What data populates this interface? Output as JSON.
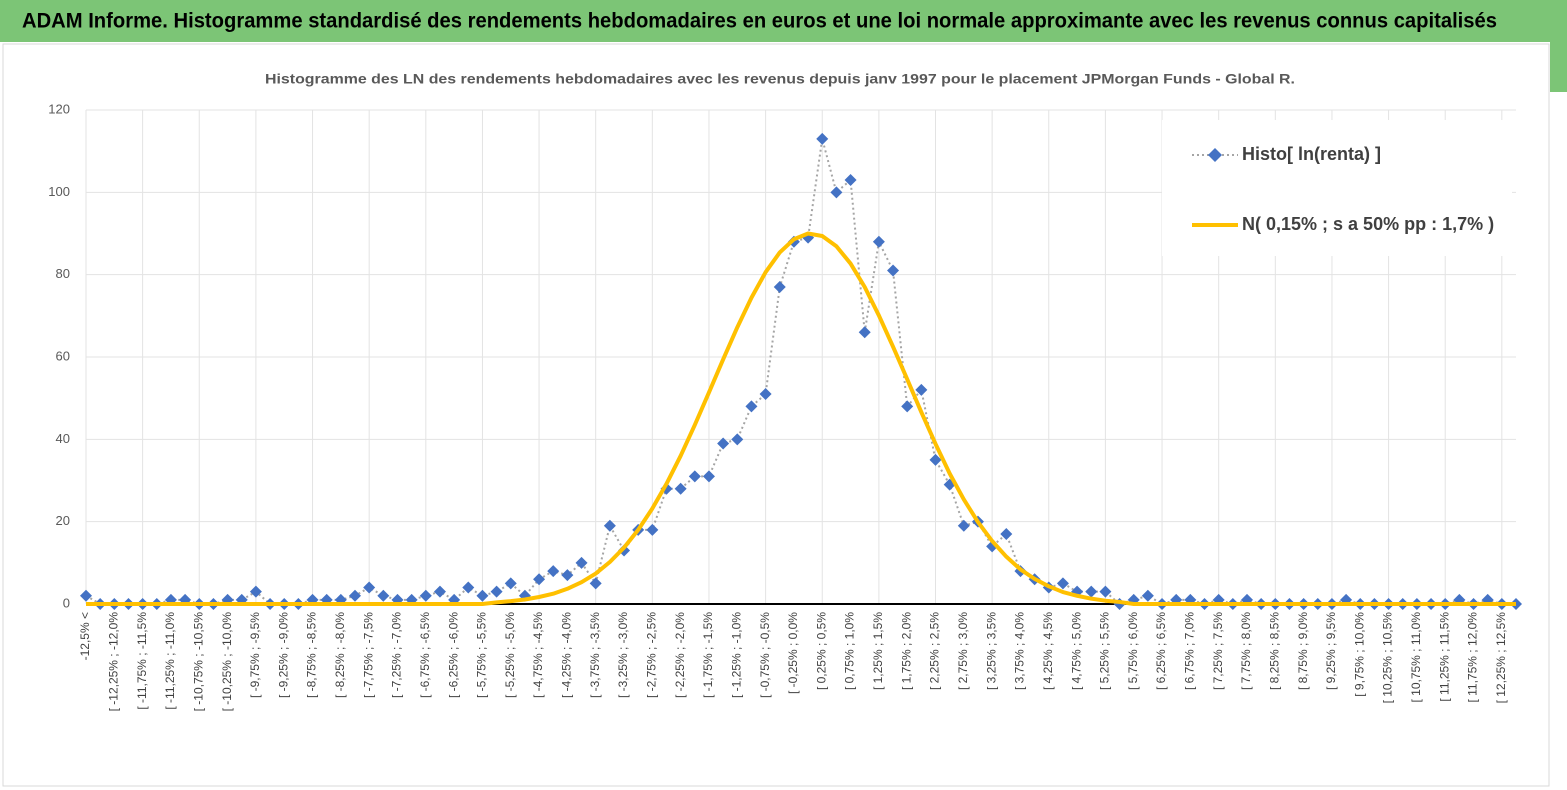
{
  "header": {
    "title": "ADAM Informe. Histogramme standardisé des rendements hebdomadaires en euros et une loi normale approximante avec les revenus connus capitalisés"
  },
  "chart_data": {
    "type": "line",
    "title": "Histogramme  des LN des rendements hebdomadaires avec les revenus depuis janv 1997 pour le placement JPMorgan Funds - Global R.",
    "categories": [
      "-12,5% <",
      null,
      "[ -12,25% ; -12,0%",
      null,
      "[ -11,75% ; -11,5%",
      null,
      "[ -11,25% ; -11,0%",
      null,
      "[ -10,75% ; -10,5%",
      null,
      "[ -10,25% ; -10,0%",
      null,
      "[ -9,75% ; -9,5%",
      null,
      "[ -9,25% ; -9,0%",
      null,
      "[ -8,75% ; -8,5%",
      null,
      "[ -8,25% ; -8,0%",
      null,
      "[ -7,75% ; -7,5%",
      null,
      "[ -7,25% ; -7,0%",
      null,
      "[ -6,75% ; -6,5%",
      null,
      "[ -6,25% ; -6,0%",
      null,
      "[ -5,75% ; -5,5%",
      null,
      "[ -5,25% ; -5,0%",
      null,
      "[ -4,75% ; -4,5%",
      null,
      "[ -4,25% ; -4,0%",
      null,
      "[ -3,75% ; -3,5%",
      null,
      "[ -3,25% ; -3,0%",
      null,
      "[ -2,75% ; -2,5%",
      null,
      "[ -2,25% ; -2,0%",
      null,
      "[ -1,75% ; -1,5%",
      null,
      "[ -1,25% ; -1,0%",
      null,
      "[ -0,75% ; -0,5%",
      null,
      "[ -0,25% ; 0,0%",
      null,
      "[ 0,25% ; 0,5%",
      null,
      "[ 0,75% ; 1,0%",
      null,
      "[ 1,25% ; 1,5%",
      null,
      "[ 1,75% ; 2,0%",
      null,
      "[ 2,25% ; 2,5%",
      null,
      "[ 2,75% ; 3,0%",
      null,
      "[ 3,25% ; 3,5%",
      null,
      "[ 3,75% ; 4,0%",
      null,
      "[ 4,25% ; 4,5%",
      null,
      "[ 4,75% ; 5,0%",
      null,
      "[ 5,25% ; 5,5%",
      null,
      "[ 5,75% ; 6,0%",
      null,
      "[ 6,25% ; 6,5%",
      null,
      "[ 6,75% ; 7,0%",
      null,
      "[ 7,25% ; 7,5%",
      null,
      "[ 7,75% ; 8,0%",
      null,
      "[ 8,25% ; 8,5%",
      null,
      "[ 8,75% ; 9,0%",
      null,
      "[ 9,25% ; 9,5%",
      null,
      "[ 9,75% ; 10,0%",
      null,
      "[ 10,25% ; 10,5%",
      null,
      "[ 10,75% ; 11,0%",
      null,
      "[ 11,25% ; 11,5%",
      null,
      "[ 11,75% ; 12,0%",
      null,
      "[ 12,25% ; 12,5%",
      null
    ],
    "series": [
      {
        "name": "Histo[ ln(renta) ]",
        "color": "#4472c4",
        "line_color": "#a5a5a5",
        "line_style": "dotted",
        "marker": "diamond",
        "values": [
          2,
          0,
          0,
          0,
          0,
          0,
          1,
          1,
          0,
          0,
          1,
          1,
          3,
          0,
          0,
          0,
          1,
          1,
          1,
          2,
          4,
          2,
          1,
          1,
          2,
          3,
          1,
          4,
          2,
          3,
          5,
          2,
          6,
          8,
          7,
          10,
          5,
          19,
          13,
          18,
          18,
          28,
          28,
          31,
          31,
          39,
          40,
          48,
          51,
          77,
          88,
          89,
          113,
          100,
          103,
          66,
          88,
          81,
          48,
          52,
          35,
          29,
          19,
          20,
          14,
          17,
          8,
          6,
          4,
          5,
          3,
          3,
          3,
          0,
          1,
          2,
          0,
          1,
          1,
          0,
          1,
          0,
          1,
          0,
          0,
          0,
          0,
          0,
          0,
          1,
          0,
          0,
          0,
          0,
          0,
          0,
          0,
          1,
          0,
          1,
          0,
          0
        ]
      },
      {
        "name": "N( 0,15% ; s a 50% pp : 1,7% )",
        "color": "#ffc000",
        "line_style": "solid",
        "marker": "none",
        "values": [
          0,
          0,
          0,
          0,
          0,
          0,
          0,
          0,
          0,
          0,
          0,
          0,
          0,
          0,
          0,
          0,
          0,
          0,
          0,
          0,
          0,
          0,
          0,
          0,
          0,
          0,
          0,
          0,
          0,
          0.4,
          0.7,
          1.1,
          1.7,
          2.5,
          3.7,
          5.3,
          7.4,
          10.2,
          13.7,
          18.0,
          23.2,
          29.2,
          36.0,
          43.5,
          51.4,
          59.4,
          67.2,
          74.4,
          80.6,
          85.4,
          88.6,
          90.0,
          89.4,
          86.9,
          82.7,
          77.0,
          70.1,
          62.5,
          54.6,
          46.6,
          38.9,
          31.7,
          25.4,
          19.9,
          15.3,
          11.5,
          8.4,
          6.1,
          4.3,
          2.9,
          2.0,
          1.3,
          0.8,
          0.5,
          0,
          0,
          0,
          0,
          0,
          0,
          0,
          0,
          0,
          0,
          0,
          0,
          0,
          0,
          0,
          0,
          0,
          0,
          0,
          0,
          0,
          0,
          0,
          0,
          0,
          0,
          0,
          0
        ]
      }
    ],
    "ylim": [
      0,
      120
    ],
    "yticks": [
      0,
      20,
      40,
      60,
      80,
      100,
      120
    ],
    "grid": true,
    "legend": "top-right"
  }
}
